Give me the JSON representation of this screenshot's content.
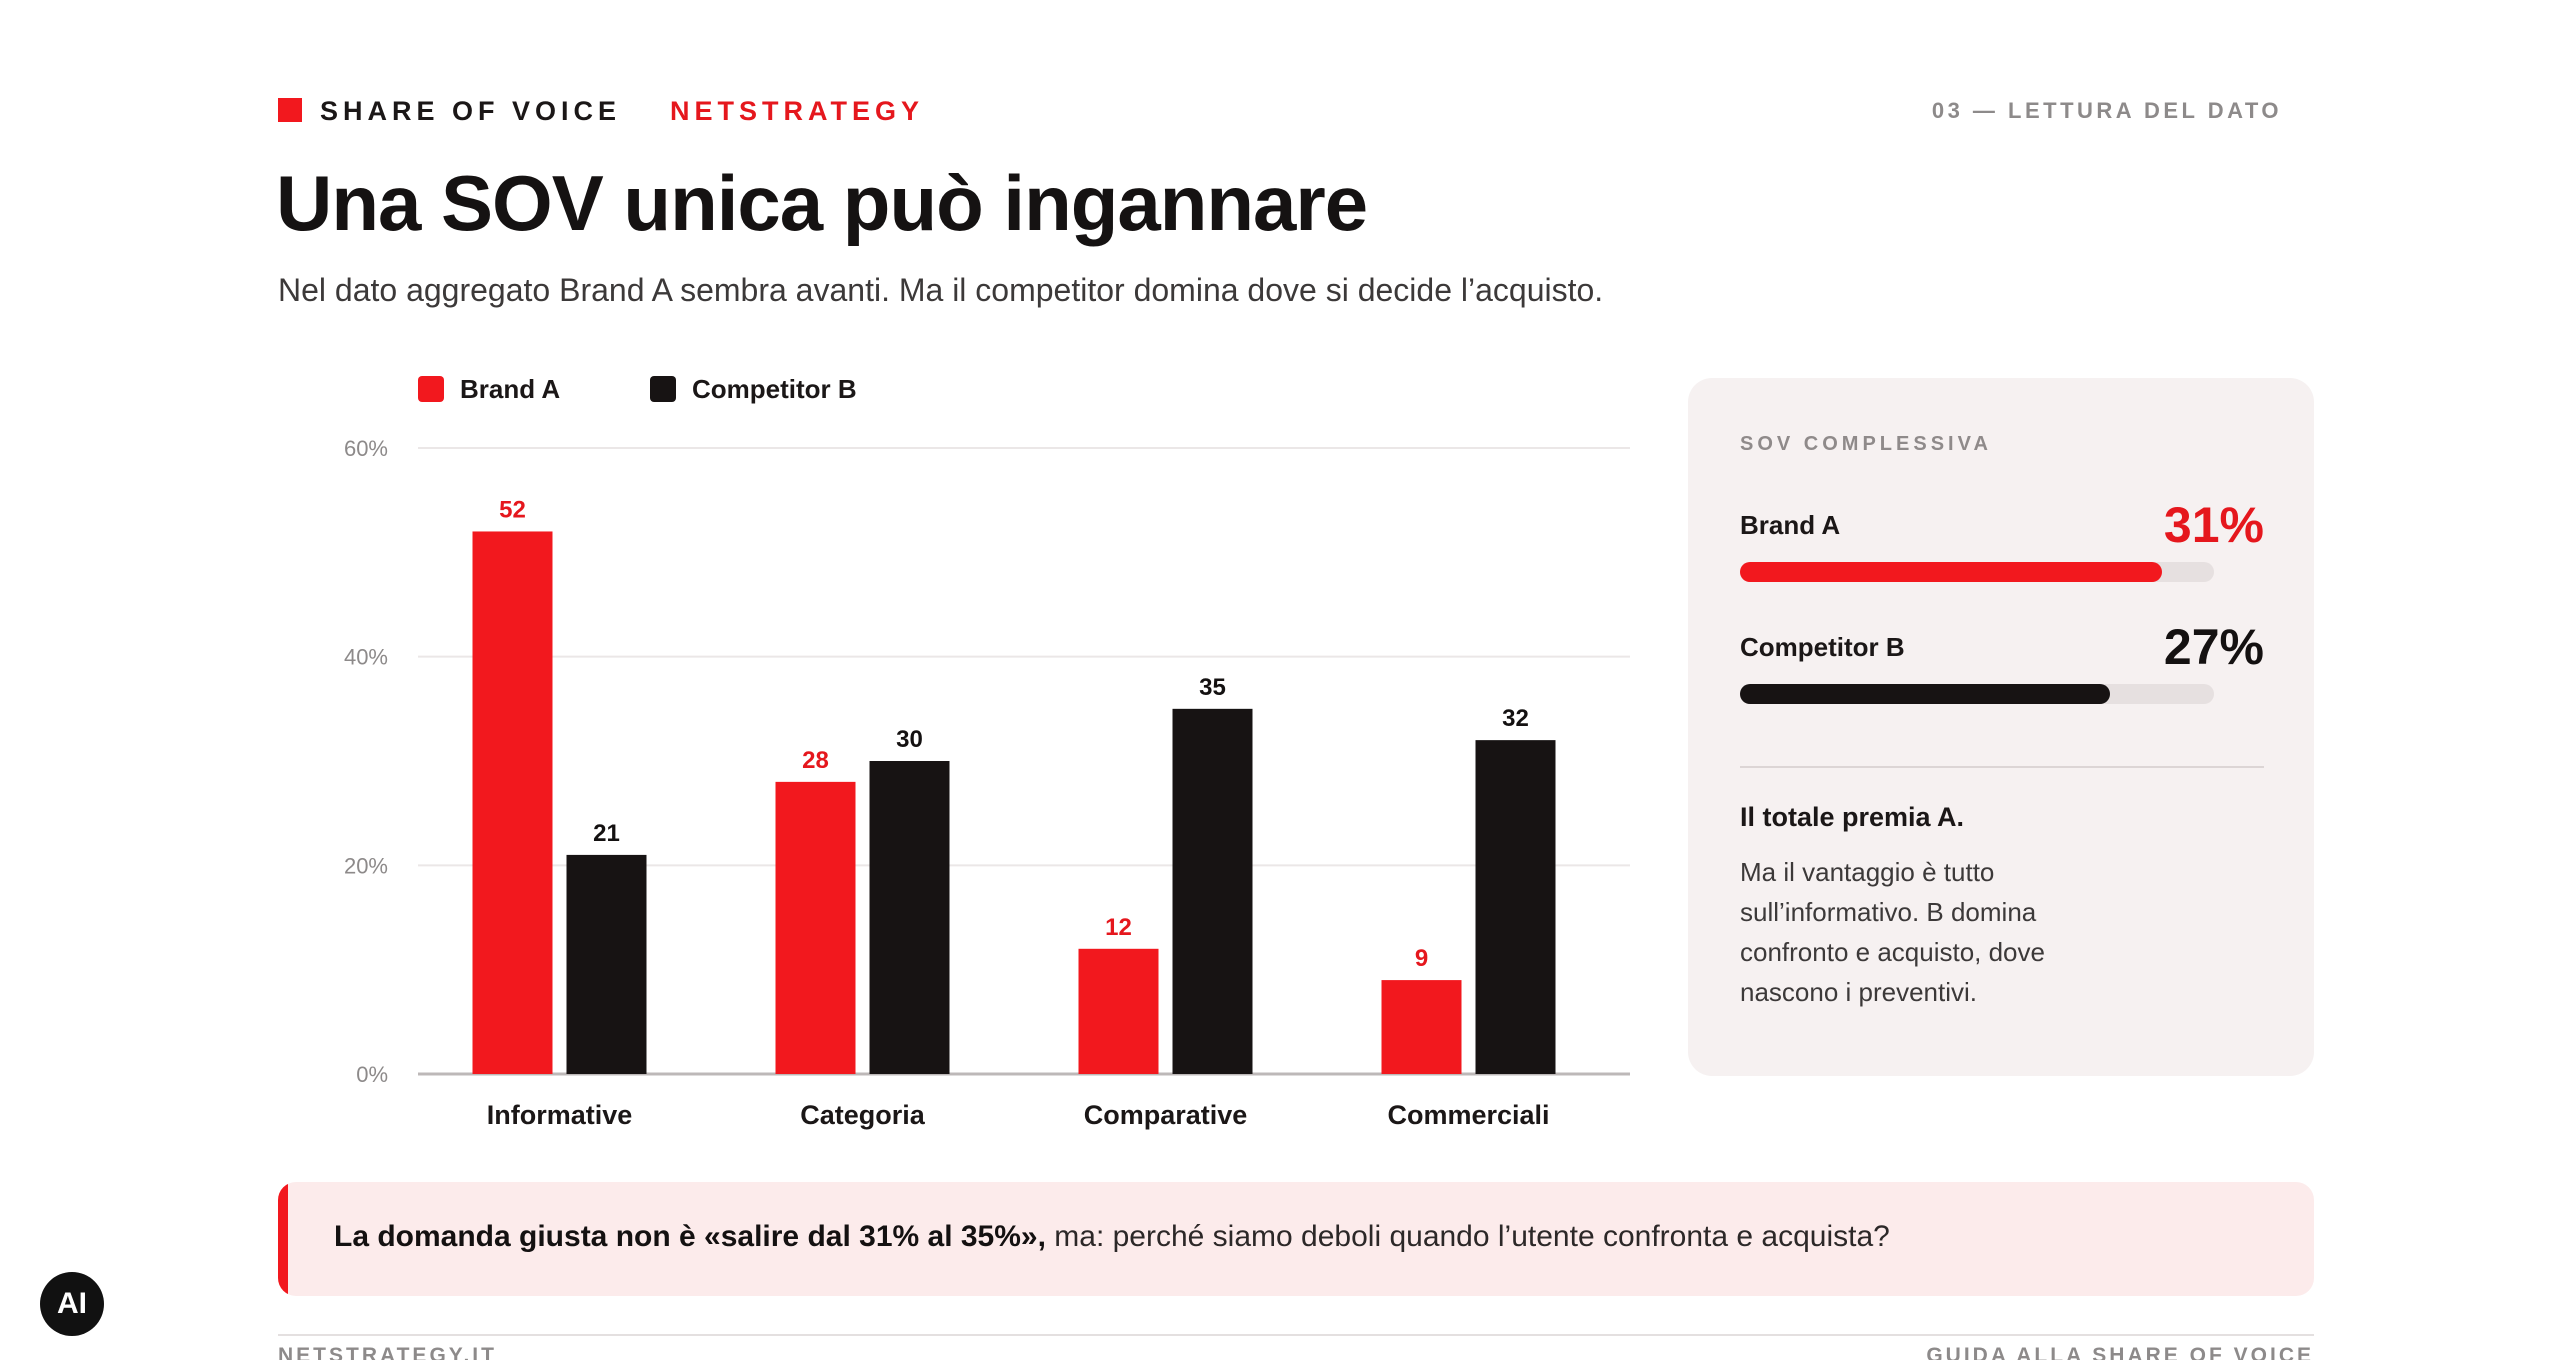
{
  "header": {
    "kicker": "SHARE OF VOICE",
    "brand": "NETSTRATEGY",
    "section": "03 — LETTURA DEL DATO"
  },
  "title": "Una SOV unica può ingannare",
  "subtitle": "Nel dato aggregato Brand A sembra avanti. Ma il competitor domina dove si decide l’acquisto.",
  "chart_data": {
    "type": "bar",
    "categories": [
      "Informative",
      "Categoria",
      "Comparative",
      "Commerciali"
    ],
    "series": [
      {
        "name": "Brand A",
        "values": [
          52,
          28,
          12,
          9
        ],
        "color": "#f2181e",
        "label_color": "#e5171d"
      },
      {
        "name": "Competitor B",
        "values": [
          21,
          30,
          35,
          32
        ],
        "color": "#171313",
        "label_color": "#141111"
      }
    ],
    "yticks": [
      "0%",
      "20%",
      "40%",
      "60%"
    ],
    "ytick_values": [
      0,
      20,
      40,
      60
    ],
    "ylim": [
      0,
      60
    ],
    "grid": true,
    "legend": "top-left",
    "data_labels": true
  },
  "sov": {
    "title": "SOV COMPLESSIVA",
    "rows": [
      {
        "name": "Brand A",
        "value": "31%",
        "fill": 0.89
      },
      {
        "name": "Competitor B",
        "value": "27%",
        "fill": 0.78
      }
    ],
    "note_title": "Il totale premia A.",
    "note_text": "Ma il vantaggio è tutto sull’informativo. B domina confronto e acquisto, dove nascono i preventivi."
  },
  "callout": {
    "bold": "La domanda giusta non è «salire dal 31% al 35%»,",
    "rest": " ma: perché siamo deboli quando l’utente confronta e acquista?"
  },
  "badge": "AI",
  "footer": {
    "left": "NETSTRATEGY.IT",
    "right": "GUIDA ALLA SHARE OF VOICE"
  }
}
